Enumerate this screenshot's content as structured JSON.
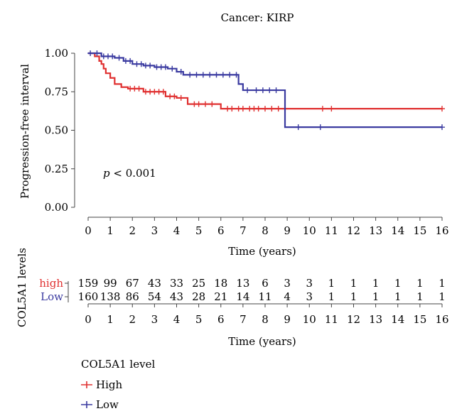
{
  "chart_data": {
    "type": "line",
    "title": "Cancer: KIRP",
    "xlabel": "Time (years)",
    "ylabel": "Progression-free interval",
    "xlim": [
      -0.3,
      16.5
    ],
    "ylim": [
      -0.05,
      1.05
    ],
    "x_ticks": [
      "0",
      "1",
      "2",
      "3",
      "4",
      "5",
      "6",
      "7",
      "8",
      "9",
      "10",
      "11",
      "12",
      "13",
      "14",
      "15",
      "16"
    ],
    "y_ticks": [
      "0.00",
      "0.25",
      "0.50",
      "0.75",
      "1.00"
    ],
    "annotation": {
      "italic": "p",
      "text": " < 0.001"
    },
    "grid": false,
    "series": [
      {
        "name": "High",
        "color": "#e03030",
        "steps": [
          [
            0,
            1.0
          ],
          [
            0.3,
            0.98
          ],
          [
            0.5,
            0.95
          ],
          [
            0.6,
            0.93
          ],
          [
            0.7,
            0.9
          ],
          [
            0.8,
            0.87
          ],
          [
            1.0,
            0.84
          ],
          [
            1.2,
            0.8
          ],
          [
            1.5,
            0.78
          ],
          [
            1.8,
            0.77
          ],
          [
            2.5,
            0.75
          ],
          [
            3.5,
            0.72
          ],
          [
            4.0,
            0.71
          ],
          [
            4.5,
            0.67
          ],
          [
            6.0,
            0.64
          ],
          [
            9.0,
            0.64
          ],
          [
            16.0,
            0.64
          ]
        ],
        "censor_x": [
          1.9,
          2.1,
          2.3,
          2.6,
          2.8,
          3.0,
          3.2,
          3.4,
          3.7,
          3.9,
          4.2,
          4.8,
          5.0,
          5.3,
          5.6,
          6.3,
          6.5,
          6.8,
          7.0,
          7.3,
          7.5,
          7.7,
          8.0,
          8.3,
          8.6,
          10.6,
          11.0,
          16.0
        ]
      },
      {
        "name": "Low",
        "color": "#3a3aa0",
        "steps": [
          [
            0,
            1.0
          ],
          [
            0.6,
            0.98
          ],
          [
            1.2,
            0.97
          ],
          [
            1.6,
            0.95
          ],
          [
            2.0,
            0.93
          ],
          [
            2.5,
            0.92
          ],
          [
            3.0,
            0.91
          ],
          [
            3.6,
            0.9
          ],
          [
            4.0,
            0.88
          ],
          [
            4.3,
            0.86
          ],
          [
            6.8,
            0.8
          ],
          [
            7.0,
            0.76
          ],
          [
            8.0,
            0.76
          ],
          [
            8.9,
            0.52
          ],
          [
            16.0,
            0.52
          ]
        ],
        "censor_x": [
          0.1,
          0.4,
          0.7,
          0.9,
          1.1,
          1.4,
          1.7,
          1.9,
          2.2,
          2.4,
          2.6,
          2.8,
          3.1,
          3.3,
          3.5,
          3.8,
          4.2,
          4.6,
          4.9,
          5.2,
          5.5,
          5.8,
          6.1,
          6.4,
          6.7,
          7.2,
          7.6,
          7.9,
          8.2,
          8.5,
          9.5,
          10.5,
          16.0
        ]
      }
    ],
    "risk_table": {
      "ylabel": "COL5A1 levels",
      "xlabel": "Time (years)",
      "x": [
        0,
        1,
        2,
        3,
        4,
        5,
        6,
        7,
        8,
        9,
        10,
        11,
        12,
        13,
        14,
        15,
        16
      ],
      "rows": [
        {
          "label": "high",
          "color": "#e03030",
          "values": [
            "159",
            "99",
            "67",
            "43",
            "33",
            "25",
            "18",
            "13",
            "6",
            "3",
            "3",
            "1",
            "1",
            "1",
            "1",
            "1",
            "1"
          ]
        },
        {
          "label": "Low",
          "color": "#3a3aa0",
          "values": [
            "160",
            "138",
            "86",
            "54",
            "43",
            "28",
            "21",
            "14",
            "11",
            "4",
            "3",
            "1",
            "1",
            "1",
            "1",
            "1",
            "1"
          ]
        }
      ]
    },
    "legend": {
      "title": "COL5A1 level",
      "entries": [
        {
          "label": "High",
          "color": "#e03030"
        },
        {
          "label": "Low",
          "color": "#3a3aa0"
        }
      ]
    }
  }
}
